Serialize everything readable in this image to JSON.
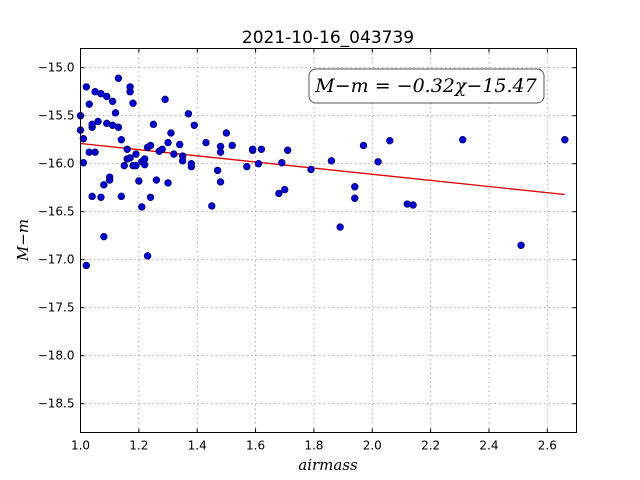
{
  "chart_data": {
    "type": "scatter",
    "title": "2021-10-16_043739",
    "xlabel": "airmass",
    "ylabel": "M−m",
    "xlim": [
      1.0,
      2.7
    ],
    "ylim": [
      -18.8,
      -14.8
    ],
    "y_inverted": true,
    "grid": true,
    "x_ticks": [
      "1.0",
      "1.2",
      "1.4",
      "1.6",
      "1.8",
      "2.0",
      "2.2",
      "2.4",
      "2.6"
    ],
    "y_ticks": [
      "−15.0",
      "−15.5",
      "−16.0",
      "−16.5",
      "−17.0",
      "−17.5",
      "−18.0",
      "−18.5"
    ],
    "annotation": "M−m = −0.32χ−15.47",
    "annotation_position": "top-right",
    "colors": {
      "points": "#0000cc",
      "fit_line": "#dd0000"
    },
    "fit": {
      "slope": -0.32,
      "intercept": -15.47,
      "x_range": [
        1.0,
        2.66
      ]
    },
    "series": [
      {
        "points": [
          [
            1.0,
            -15.5
          ],
          [
            1.0,
            -15.65
          ],
          [
            1.01,
            -15.74
          ],
          [
            1.01,
            -15.99
          ],
          [
            1.02,
            -17.06
          ],
          [
            1.02,
            -15.2
          ],
          [
            1.03,
            -15.88
          ],
          [
            1.03,
            -15.38
          ],
          [
            1.04,
            -15.62
          ],
          [
            1.04,
            -15.59
          ],
          [
            1.04,
            -16.34
          ],
          [
            1.05,
            -15.25
          ],
          [
            1.05,
            -15.88
          ],
          [
            1.06,
            -15.56
          ],
          [
            1.07,
            -15.27
          ],
          [
            1.07,
            -16.35
          ],
          [
            1.08,
            -16.76
          ],
          [
            1.08,
            -16.22
          ],
          [
            1.09,
            -15.3
          ],
          [
            1.09,
            -15.58
          ],
          [
            1.1,
            -16.14
          ],
          [
            1.1,
            -16.17
          ],
          [
            1.11,
            -15.6
          ],
          [
            1.11,
            -15.35
          ],
          [
            1.12,
            -15.47
          ],
          [
            1.13,
            -15.11
          ],
          [
            1.13,
            -15.62
          ],
          [
            1.14,
            -15.75
          ],
          [
            1.14,
            -16.34
          ],
          [
            1.15,
            -16.02
          ],
          [
            1.16,
            -15.95
          ],
          [
            1.16,
            -15.85
          ],
          [
            1.17,
            -15.2
          ],
          [
            1.17,
            -15.25
          ],
          [
            1.17,
            -15.94
          ],
          [
            1.18,
            -16.02
          ],
          [
            1.18,
            -15.37
          ],
          [
            1.19,
            -15.9
          ],
          [
            1.19,
            -16.02
          ],
          [
            1.2,
            -16.18
          ],
          [
            1.21,
            -15.98
          ],
          [
            1.21,
            -16.45
          ],
          [
            1.22,
            -15.95
          ],
          [
            1.22,
            -16.01
          ],
          [
            1.23,
            -15.83
          ],
          [
            1.23,
            -16.96
          ],
          [
            1.24,
            -15.81
          ],
          [
            1.24,
            -16.35
          ],
          [
            1.25,
            -15.59
          ],
          [
            1.26,
            -16.17
          ],
          [
            1.27,
            -15.87
          ],
          [
            1.28,
            -15.85
          ],
          [
            1.29,
            -15.33
          ],
          [
            1.3,
            -15.78
          ],
          [
            1.3,
            -16.2
          ],
          [
            1.31,
            -15.68
          ],
          [
            1.32,
            -15.9
          ],
          [
            1.34,
            -15.8
          ],
          [
            1.35,
            -15.92
          ],
          [
            1.35,
            -15.97
          ],
          [
            1.37,
            -15.48
          ],
          [
            1.38,
            -16.03
          ],
          [
            1.38,
            -16.0
          ],
          [
            1.39,
            -15.6
          ],
          [
            1.43,
            -15.78
          ],
          [
            1.45,
            -16.44
          ],
          [
            1.47,
            -16.07
          ],
          [
            1.48,
            -15.82
          ],
          [
            1.48,
            -15.88
          ],
          [
            1.48,
            -16.19
          ],
          [
            1.5,
            -15.68
          ],
          [
            1.52,
            -15.81
          ],
          [
            1.57,
            -16.03
          ],
          [
            1.59,
            -15.86
          ],
          [
            1.59,
            -15.85
          ],
          [
            1.61,
            -16.0
          ],
          [
            1.62,
            -15.85
          ],
          [
            1.68,
            -16.31
          ],
          [
            1.69,
            -15.99
          ],
          [
            1.7,
            -16.27
          ],
          [
            1.71,
            -15.86
          ],
          [
            1.79,
            -16.06
          ],
          [
            1.86,
            -15.97
          ],
          [
            1.89,
            -16.66
          ],
          [
            1.94,
            -16.24
          ],
          [
            1.94,
            -16.36
          ],
          [
            1.97,
            -15.81
          ],
          [
            2.02,
            -15.98
          ],
          [
            2.06,
            -15.76
          ],
          [
            2.12,
            -16.42
          ],
          [
            2.14,
            -16.43
          ],
          [
            2.31,
            -15.75
          ],
          [
            2.51,
            -16.85
          ],
          [
            2.66,
            -15.75
          ]
        ]
      }
    ]
  }
}
